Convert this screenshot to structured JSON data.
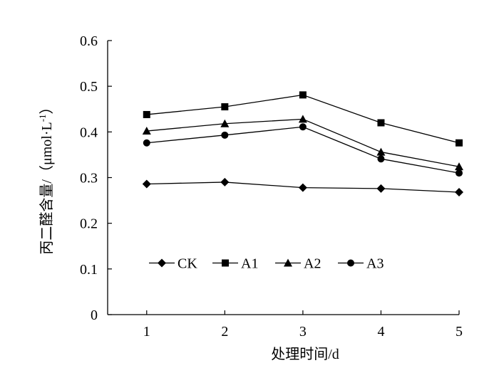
{
  "chart_data": {
    "type": "line",
    "title": "",
    "xlabel": "处理时间/d",
    "ylabel": "丙二醛含量/（μmol·L",
    "ylabel_sup": "-1",
    "ylabel_close": "）",
    "x": [
      1,
      2,
      3,
      4,
      5
    ],
    "xlim": [
      0.5,
      5
    ],
    "ylim": [
      0,
      0.6
    ],
    "yticks": [
      0,
      0.1,
      0.2,
      0.3,
      0.4,
      0.5,
      0.6
    ],
    "ytick_labels": [
      "0",
      "0.1",
      "0.2",
      "0.3",
      "0.4",
      "0.5",
      "0.6"
    ],
    "xtick_labels": [
      "1",
      "2",
      "3",
      "4",
      "5"
    ],
    "grid": false,
    "legend_position": "bottom-left, inside plot",
    "series": [
      {
        "name": "CK",
        "marker": "diamond",
        "values": [
          0.286,
          0.29,
          0.278,
          0.276,
          0.268
        ]
      },
      {
        "name": "A1",
        "marker": "square",
        "values": [
          0.438,
          0.455,
          0.481,
          0.42,
          0.376
        ]
      },
      {
        "name": "A2",
        "marker": "triangle",
        "values": [
          0.402,
          0.418,
          0.428,
          0.356,
          0.324
        ]
      },
      {
        "name": "A3",
        "marker": "circle",
        "values": [
          0.376,
          0.393,
          0.411,
          0.341,
          0.31
        ]
      }
    ],
    "colors": {
      "line": "#000000",
      "marker": "#000000"
    }
  }
}
